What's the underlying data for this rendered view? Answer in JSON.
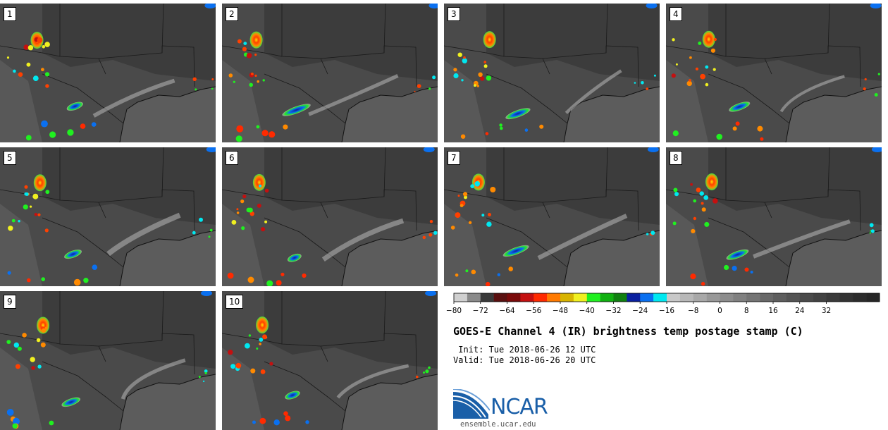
{
  "panels": [
    {
      "label": "1"
    },
    {
      "label": "2"
    },
    {
      "label": "3"
    },
    {
      "label": "4"
    },
    {
      "label": "5"
    },
    {
      "label": "6"
    },
    {
      "label": "7"
    },
    {
      "label": "8"
    },
    {
      "label": "9"
    },
    {
      "label": "10"
    }
  ],
  "colorbar": {
    "tick_labels": [
      "−80",
      "−72",
      "−64",
      "−56",
      "−48",
      "−40",
      "−32",
      "−24",
      "−16",
      "−8",
      "0",
      "8",
      "16",
      "24",
      "32"
    ],
    "colors": [
      "#d0d0d0",
      "#8a8a8a",
      "#3a3a3a",
      "#5a1010",
      "#7a0a0a",
      "#c41010",
      "#ff2a00",
      "#ff7a00",
      "#d8b400",
      "#f0f020",
      "#20f020",
      "#10b010",
      "#108010",
      "#0a20a0",
      "#0a70f0",
      "#00e8f0",
      "#c8c8c8",
      "#b8b8b8",
      "#a8a8a8",
      "#989898",
      "#8c8c8c",
      "#808080",
      "#747474",
      "#686868",
      "#5e5e5e",
      "#545454",
      "#4a4a4a",
      "#424242",
      "#3a3a3a",
      "#333333",
      "#2c2c2c",
      "#262626"
    ]
  },
  "title": "GOES-E Channel 4 (IR) brightness temp postage stamp (C)",
  "init_text": " Init: Tue 2018-06-26 12 UTC",
  "valid_text": "Valid: Tue 2018-06-26 20 UTC",
  "logo": {
    "text": "NCAR",
    "url": "ensemble.ucar.edu",
    "color": "#1a5fa8"
  }
}
